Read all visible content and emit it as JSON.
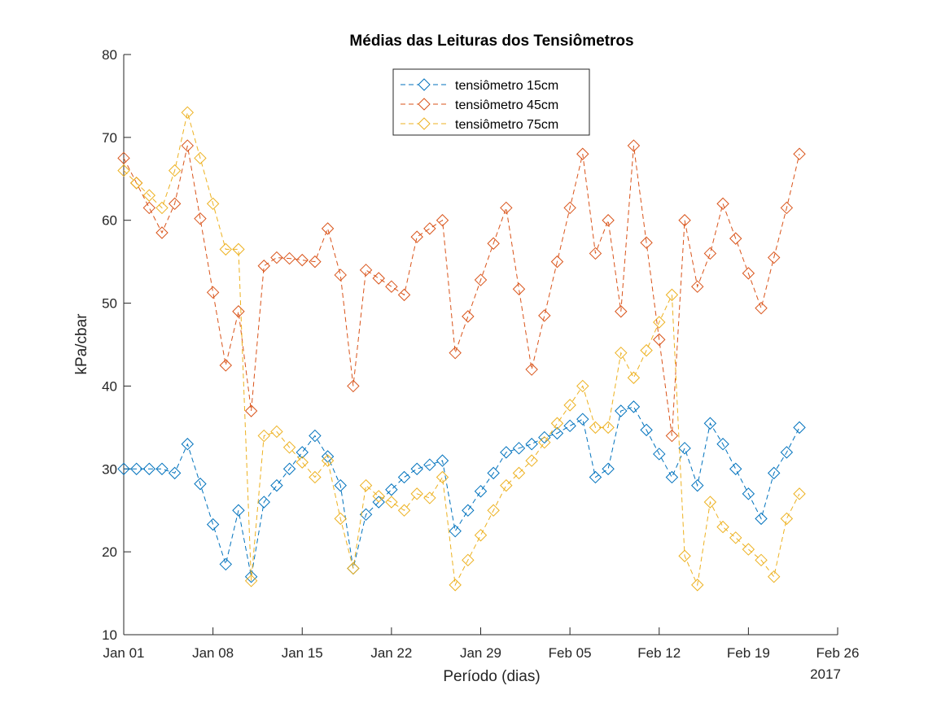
{
  "chart_data": {
    "type": "line",
    "title": "Médias das Leituras dos Tensiômetros",
    "xlabel": "Período (dias)",
    "ylabel": "kPa/cbar",
    "year_label": "2017",
    "ylim": [
      10,
      80
    ],
    "yticks": [
      10,
      20,
      30,
      40,
      50,
      60,
      70,
      80
    ],
    "xlim": [
      "2017-01-01",
      "2017-02-26"
    ],
    "xticks": [
      {
        "date": "2017-01-01",
        "label": "Jan 01"
      },
      {
        "date": "2017-01-08",
        "label": "Jan 08"
      },
      {
        "date": "2017-01-15",
        "label": "Jan 15"
      },
      {
        "date": "2017-01-22",
        "label": "Jan 22"
      },
      {
        "date": "2017-01-29",
        "label": "Jan 29"
      },
      {
        "date": "2017-02-05",
        "label": "Feb 05"
      },
      {
        "date": "2017-02-12",
        "label": "Feb 12"
      },
      {
        "date": "2017-02-19",
        "label": "Feb 19"
      },
      {
        "date": "2017-02-26",
        "label": "Feb 26"
      }
    ],
    "grid": false,
    "legend_position": "top-center",
    "marker": "diamond",
    "line_style": "dashed",
    "x": [
      "2017-01-01",
      "2017-01-02",
      "2017-01-03",
      "2017-01-04",
      "2017-01-05",
      "2017-01-06",
      "2017-01-07",
      "2017-01-08",
      "2017-01-09",
      "2017-01-10",
      "2017-01-11",
      "2017-01-12",
      "2017-01-13",
      "2017-01-14",
      "2017-01-15",
      "2017-01-16",
      "2017-01-17",
      "2017-01-18",
      "2017-01-19",
      "2017-01-20",
      "2017-01-21",
      "2017-01-22",
      "2017-01-23",
      "2017-01-24",
      "2017-01-25",
      "2017-01-26",
      "2017-01-27",
      "2017-01-28",
      "2017-01-29",
      "2017-01-30",
      "2017-01-31",
      "2017-02-01",
      "2017-02-02",
      "2017-02-03",
      "2017-02-04",
      "2017-02-05",
      "2017-02-06",
      "2017-02-07",
      "2017-02-08",
      "2017-02-09",
      "2017-02-10",
      "2017-02-11",
      "2017-02-12",
      "2017-02-13",
      "2017-02-14",
      "2017-02-15",
      "2017-02-16",
      "2017-02-17",
      "2017-02-18",
      "2017-02-19",
      "2017-02-20",
      "2017-02-21",
      "2017-02-22",
      "2017-02-23"
    ],
    "series": [
      {
        "name": "tensiômetro 15cm",
        "color": "#0072BD",
        "values": [
          30,
          30,
          30,
          30,
          29.5,
          33,
          28.2,
          23.3,
          18.5,
          25,
          17,
          26,
          28,
          30,
          32,
          34,
          31.5,
          28,
          18,
          24.5,
          26,
          27.5,
          29,
          30,
          30.5,
          31,
          22.5,
          25,
          27.3,
          29.5,
          32,
          32.5,
          33,
          33.8,
          34.3,
          35.2,
          36,
          29,
          30,
          37,
          37.5,
          34.7,
          31.8,
          29,
          32.5,
          28,
          35.5,
          33,
          30,
          27,
          24,
          29.5,
          32,
          35
        ]
      },
      {
        "name": "tensiômetro 45cm",
        "color": "#D95319",
        "values": [
          67.5,
          64.5,
          61.5,
          58.5,
          62,
          69,
          60.2,
          51.3,
          42.5,
          49,
          37,
          54.5,
          55.5,
          55.4,
          55.2,
          55,
          59,
          53.4,
          40,
          54,
          53,
          52,
          51,
          58,
          59,
          60,
          44,
          48.4,
          52.8,
          57.2,
          61.5,
          51.7,
          42,
          48.5,
          55,
          61.5,
          68,
          56,
          60,
          49,
          69,
          57.3,
          45.6,
          34,
          60,
          52,
          56,
          62,
          57.8,
          53.6,
          49.4,
          55.5,
          61.5,
          68
        ]
      },
      {
        "name": "tensiômetro 75cm",
        "color": "#EDB120",
        "values": [
          66,
          64.5,
          63,
          61.5,
          66,
          73,
          67.5,
          62,
          56.5,
          56.5,
          16.5,
          34,
          34.5,
          32.6,
          30.8,
          29,
          31,
          24,
          18,
          28,
          26.7,
          26,
          25,
          27,
          26.5,
          29,
          16,
          19,
          22,
          25,
          28,
          29.5,
          31,
          33.2,
          35.5,
          37.7,
          40,
          35,
          35,
          44,
          41,
          44.3,
          47.7,
          51,
          19.5,
          16,
          26,
          23,
          21.7,
          20.3,
          19,
          17,
          24,
          27
        ]
      }
    ]
  }
}
